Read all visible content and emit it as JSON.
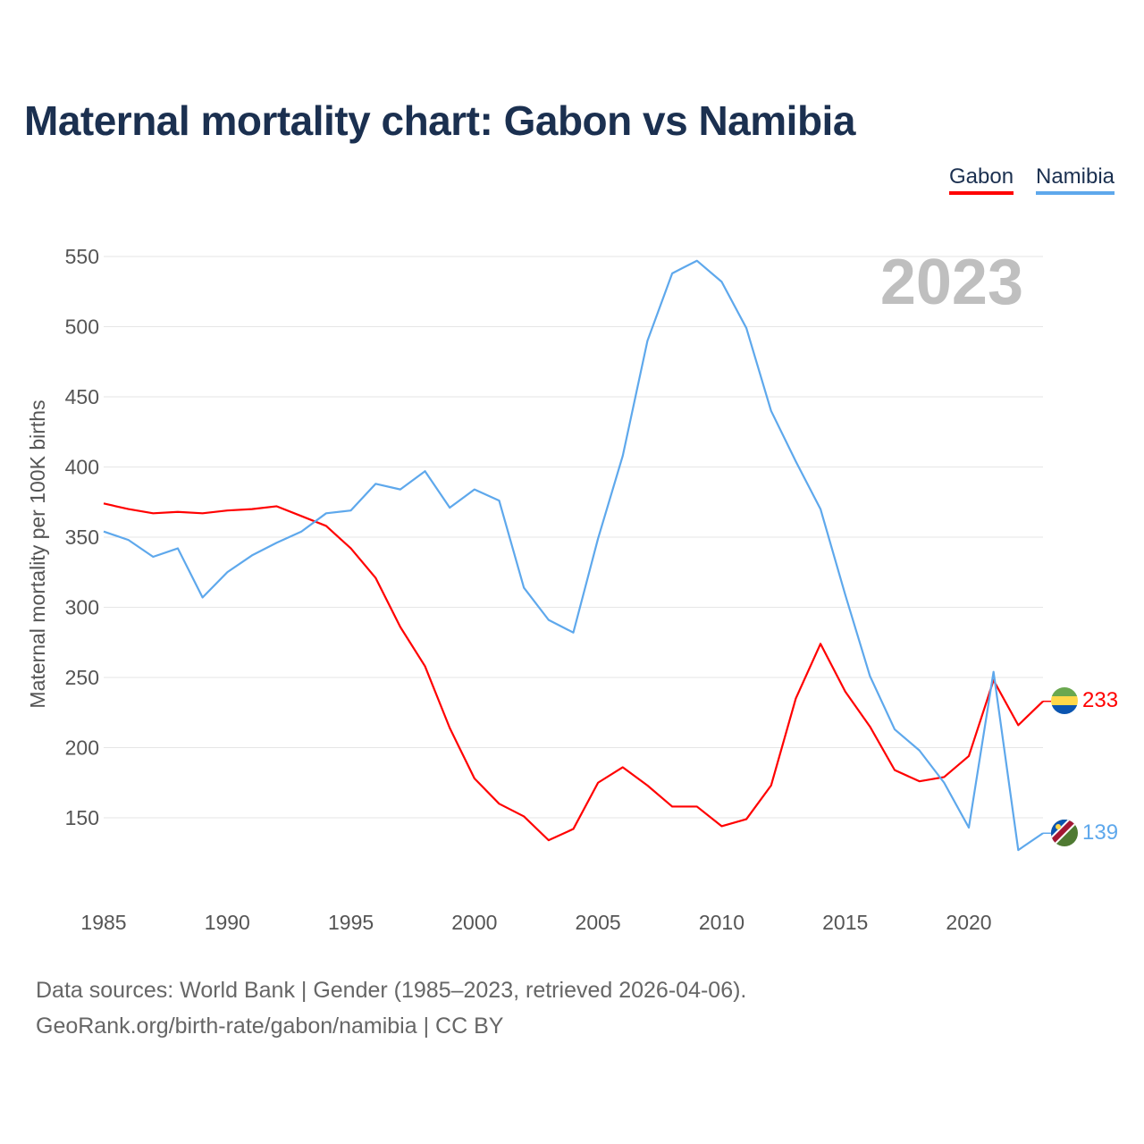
{
  "title": "Maternal mortality chart: Gabon vs Namibia",
  "footer": {
    "line1": "Data sources: World Bank | Gender (1985–2023, retrieved 2026-04-06).",
    "line2": "GeoRank.org/birth-rate/gabon/namibia | CC BY"
  },
  "chart_data": {
    "type": "line",
    "title": "Maternal mortality chart: Gabon vs Namibia",
    "xlabel": "",
    "ylabel": "Maternal mortality per 100K births",
    "year_label": "2023",
    "xlim": [
      1985,
      2023
    ],
    "ylim": [
      100,
      560
    ],
    "x_ticks": [
      "1985",
      "1990",
      "1995",
      "2000",
      "2005",
      "2010",
      "2015",
      "2020"
    ],
    "y_ticks": [
      "150",
      "200",
      "250",
      "300",
      "350",
      "400",
      "450",
      "500",
      "550"
    ],
    "grid": true,
    "legend_position": "top-right",
    "x": [
      1985,
      1986,
      1987,
      1988,
      1989,
      1990,
      1991,
      1992,
      1993,
      1994,
      1995,
      1996,
      1997,
      1998,
      1999,
      2000,
      2001,
      2002,
      2003,
      2004,
      2005,
      2006,
      2007,
      2008,
      2009,
      2010,
      2011,
      2012,
      2013,
      2014,
      2015,
      2016,
      2017,
      2018,
      2019,
      2020,
      2021,
      2022,
      2023
    ],
    "series": [
      {
        "name": "Gabon",
        "color": "#ff0000",
        "end_label": "233",
        "values": [
          374,
          370,
          367,
          368,
          367,
          369,
          370,
          372,
          365,
          358,
          342,
          321,
          286,
          258,
          214,
          178,
          160,
          151,
          134,
          142,
          175,
          186,
          173,
          158,
          158,
          144,
          149,
          173,
          235,
          274,
          240,
          215,
          184,
          176,
          179,
          194,
          248,
          216,
          233
        ]
      },
      {
        "name": "Namibia",
        "color": "#5ea8ec",
        "end_label": "139",
        "values": [
          354,
          348,
          336,
          342,
          307,
          325,
          337,
          346,
          354,
          367,
          369,
          388,
          384,
          397,
          371,
          384,
          376,
          314,
          291,
          282,
          349,
          408,
          490,
          538,
          547,
          532,
          499,
          440,
          404,
          370,
          309,
          251,
          213,
          198,
          175,
          143,
          254,
          127,
          139
        ]
      }
    ]
  }
}
